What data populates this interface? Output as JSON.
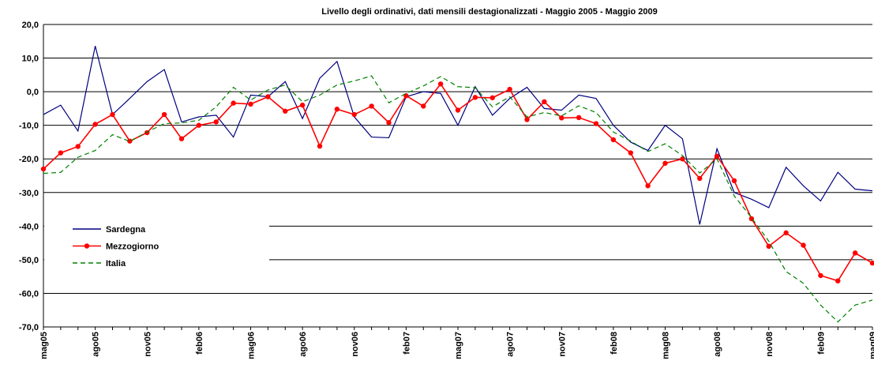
{
  "chart_data": {
    "type": "line",
    "title": "Livello degli ordinativi, dati mensili destagionalizzati - Maggio 2005 - Maggio 2009",
    "categories": [
      "mag05",
      null,
      null,
      "ago05",
      null,
      null,
      "nov05",
      null,
      null,
      "feb06",
      null,
      null,
      "mag06",
      null,
      null,
      "ago06",
      null,
      null,
      "nov06",
      null,
      null,
      "feb07",
      null,
      null,
      "mag07",
      null,
      null,
      "ago07",
      null,
      null,
      "nov07",
      null,
      null,
      "feb08",
      null,
      null,
      "mag08",
      null,
      null,
      "ago08",
      null,
      null,
      "nov08",
      null,
      null,
      "feb09",
      null,
      null,
      "mag09"
    ],
    "series": [
      {
        "name": "Sardegna",
        "color": "#000080",
        "line_style": "solid",
        "marker": "none",
        "values": [
          -6.8,
          -4,
          -11.7,
          13.6,
          -6.8,
          -2,
          3,
          6.6,
          -9,
          -7.5,
          -7,
          -13.5,
          -1,
          -1.5,
          3,
          -8,
          4,
          9,
          -7.5,
          -13.5,
          -13.7,
          -1.5,
          0,
          -0.5,
          -10,
          1.5,
          -7,
          -2,
          1.3,
          -5,
          -5.5,
          -1,
          -2,
          -10,
          -15,
          -17.5,
          -10,
          -14,
          -39.5,
          -17,
          -30,
          -32,
          -34.5,
          -22.5,
          -28,
          -32.5,
          -24,
          -29,
          -29.5
        ]
      },
      {
        "name": "Mezzogiorno",
        "color": "#ff0000",
        "line_style": "solid",
        "marker": "circle",
        "values": [
          -23,
          -18.2,
          -16.3,
          -9.7,
          -6.8,
          -14.7,
          -12.2,
          -6.8,
          -14,
          -10,
          -9,
          -3.4,
          -3.7,
          -1.5,
          -5.8,
          -4,
          -16.2,
          -5.2,
          -6.8,
          -4.3,
          -9.2,
          -1.2,
          -4.3,
          2.3,
          -5.5,
          -1.7,
          -1.8,
          0.7,
          -8.3,
          -3,
          -7.8,
          -7.7,
          -9.5,
          -14.3,
          -18.2,
          -28,
          -21.3,
          -20,
          -25.8,
          -19.2,
          -26.5,
          -37.8,
          -46,
          -42,
          -45.7,
          -54.7,
          -56.3,
          -48,
          -51
        ]
      },
      {
        "name": "Italia",
        "color": "#008000",
        "line_style": "dashed",
        "marker": "none",
        "values": [
          -24.3,
          -24,
          -19.5,
          -17.5,
          -12.8,
          -14.8,
          -12,
          -9.5,
          -9.3,
          -8.5,
          -4.5,
          1.3,
          -2.5,
          0.5,
          2,
          -3,
          -1,
          2,
          3.2,
          4.7,
          -3.3,
          -0.5,
          1.7,
          4.5,
          1.5,
          1.2,
          -4.5,
          -1.5,
          -7.5,
          -6.2,
          -7.2,
          -4.2,
          -6.2,
          -12,
          -14.7,
          -17.8,
          -15.5,
          -19,
          -24.2,
          -20,
          -31,
          -37.5,
          -44.5,
          -53.5,
          -57,
          -63.5,
          -68.5,
          -63.5,
          -62
        ]
      }
    ],
    "ylim": [
      -70,
      20
    ],
    "yticks": [
      {
        "value": -70,
        "label": "-70,0"
      },
      {
        "value": -60,
        "label": "-60,0"
      },
      {
        "value": -50,
        "label": "-50,0"
      },
      {
        "value": -40,
        "label": "-40,0"
      },
      {
        "value": -30,
        "label": "-30,0"
      },
      {
        "value": -20,
        "label": "-20,0"
      },
      {
        "value": -10,
        "label": "-10,0"
      },
      {
        "value": 0,
        "label": "0,0"
      },
      {
        "value": 10,
        "label": "10,0"
      },
      {
        "value": 20,
        "label": "20,0"
      }
    ],
    "grid": true,
    "legend": "left"
  }
}
